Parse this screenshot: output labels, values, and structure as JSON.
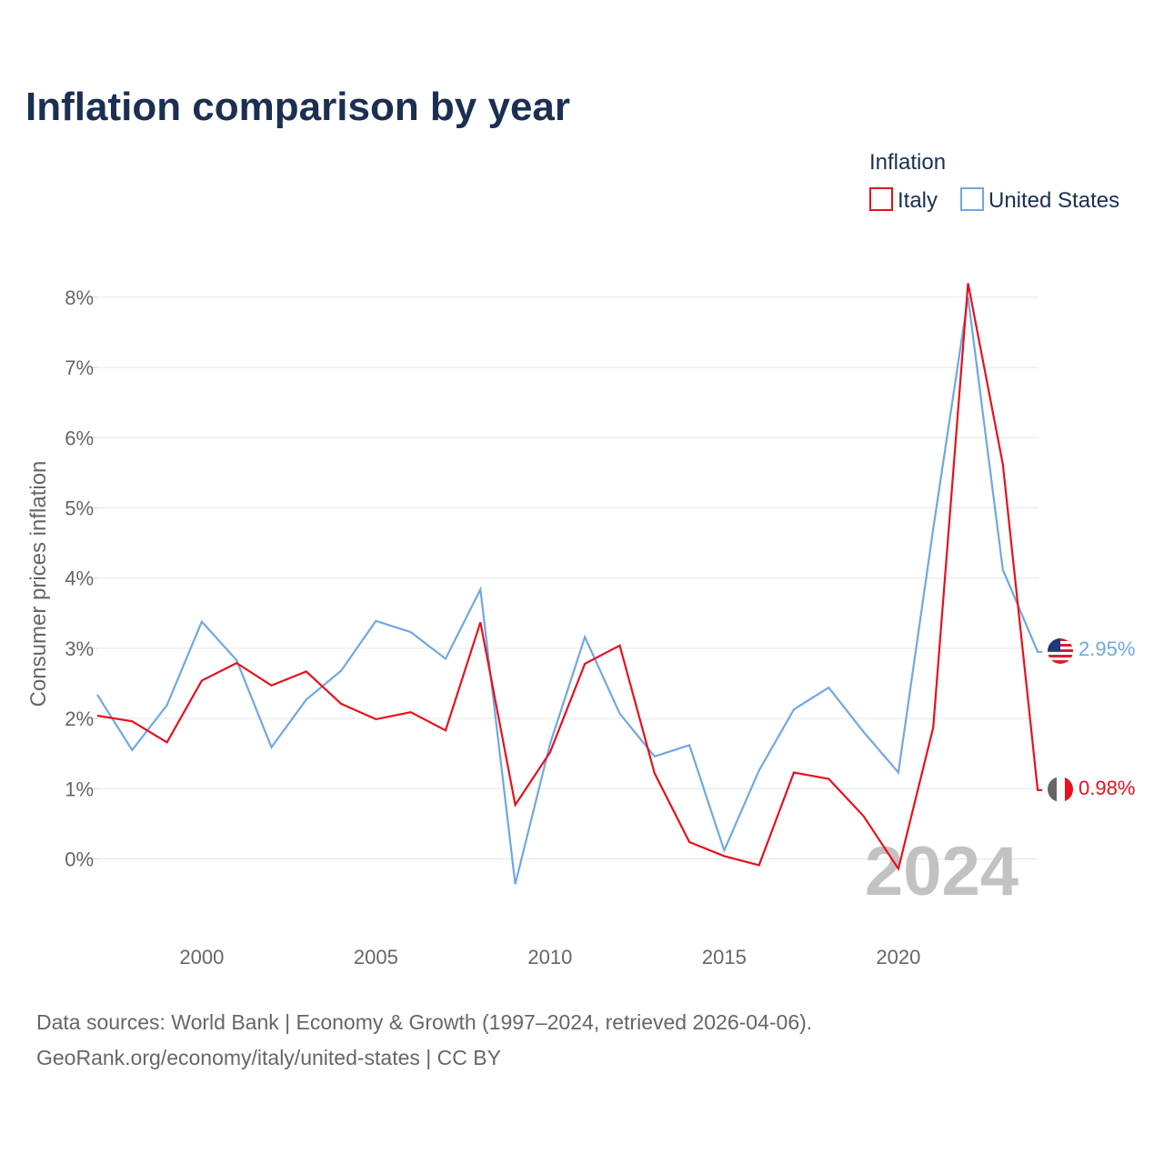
{
  "chart_data": {
    "type": "line",
    "title": "Inflation comparison by year",
    "legend_title": "Inflation",
    "legend_position": "top-right",
    "ylabel": "Consumer prices inflation",
    "xlabel": "",
    "xlim": [
      1997,
      2024
    ],
    "ylim": [
      -0.9,
      8.4
    ],
    "x_ticks": [
      2000,
      2005,
      2010,
      2015,
      2020
    ],
    "y_ticks": [
      0,
      1,
      2,
      3,
      4,
      5,
      6,
      7,
      8
    ],
    "y_tick_labels": [
      "0%",
      "1%",
      "2%",
      "3%",
      "4%",
      "5%",
      "6%",
      "7%",
      "8%"
    ],
    "grid": true,
    "current_year": "2024",
    "x": [
      1997,
      1998,
      1999,
      2000,
      2001,
      2002,
      2003,
      2004,
      2005,
      2006,
      2007,
      2008,
      2009,
      2010,
      2011,
      2012,
      2013,
      2014,
      2015,
      2016,
      2017,
      2018,
      2019,
      2020,
      2021,
      2022,
      2023,
      2024
    ],
    "series": [
      {
        "name": "Italy",
        "color": "#e8101c",
        "flag_icon": "italy-flag-icon",
        "end_label": "0.98%",
        "values": [
          2.04,
          1.96,
          1.66,
          2.54,
          2.79,
          2.47,
          2.67,
          2.21,
          1.99,
          2.09,
          1.83,
          3.37,
          0.77,
          1.52,
          2.78,
          3.04,
          1.22,
          0.24,
          0.04,
          -0.09,
          1.23,
          1.14,
          0.61,
          -0.14,
          1.87,
          8.2,
          5.62,
          0.98
        ]
      },
      {
        "name": "United States",
        "color": "#6fa8e3",
        "flag_icon": "united-states-flag-icon",
        "end_label": "2.95%",
        "values": [
          2.34,
          1.55,
          2.19,
          3.38,
          2.83,
          1.59,
          2.27,
          2.68,
          3.39,
          3.23,
          2.85,
          3.84,
          -0.36,
          1.64,
          3.16,
          2.07,
          1.46,
          1.62,
          0.12,
          1.26,
          2.13,
          2.44,
          1.81,
          1.23,
          4.7,
          8.0,
          4.12,
          2.95
        ]
      }
    ]
  },
  "footer": {
    "source_line": "Data sources: World Bank | Economy & Growth (1997–2024, retrieved 2026-04-06).",
    "credit_line": "GeoRank.org/economy/italy/united-states | CC BY"
  }
}
